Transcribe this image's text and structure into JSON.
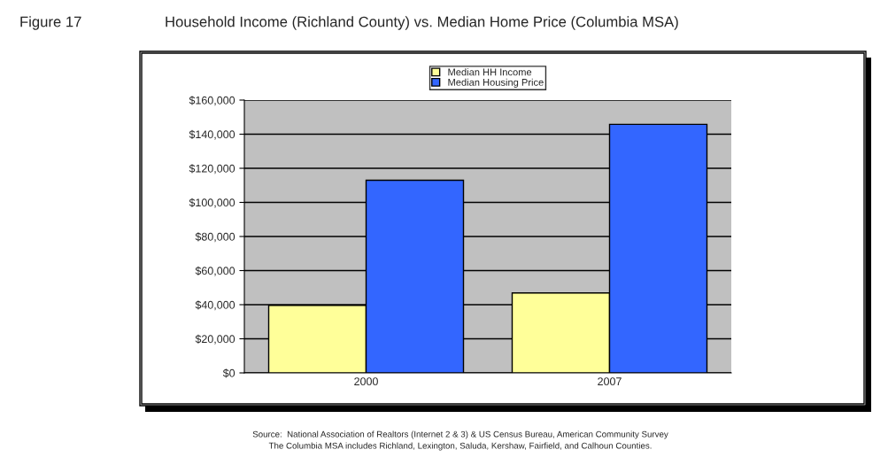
{
  "chart_data": {
    "type": "bar",
    "title": "Household Income (Richland County) vs. Median Home Price (Columbia MSA)",
    "categories": [
      "2000",
      "2007"
    ],
    "series": [
      {
        "name": "Median HH Income",
        "color": "#ffff99",
        "values": [
          39600,
          46900
        ]
      },
      {
        "name": "Median Housing Price",
        "color": "#3366ff",
        "values": [
          113000,
          145800
        ]
      }
    ],
    "ylim": [
      0,
      160000
    ],
    "yticks": [
      {
        "value": 0,
        "label": "$0"
      },
      {
        "value": 20000,
        "label": "$20,000"
      },
      {
        "value": 40000,
        "label": "$40,000"
      },
      {
        "value": 60000,
        "label": "$60,000"
      },
      {
        "value": 80000,
        "label": "$80,000"
      },
      {
        "value": 100000,
        "label": "$100,000"
      },
      {
        "value": 120000,
        "label": "$120,000"
      },
      {
        "value": 140000,
        "label": "$140,000"
      },
      {
        "value": 160000,
        "label": "$160,000"
      }
    ],
    "grid": "y",
    "legend": "top",
    "annotations": [
      "Figure 17",
      "Source:  National Association of Realtors (Internet 2 & 3) & US Census Bureau, American Community Survey",
      "The Columbia MSA includes Richland, Lexington, Saluda, Kershaw, Fairfield, and Calhoun Counties."
    ]
  }
}
